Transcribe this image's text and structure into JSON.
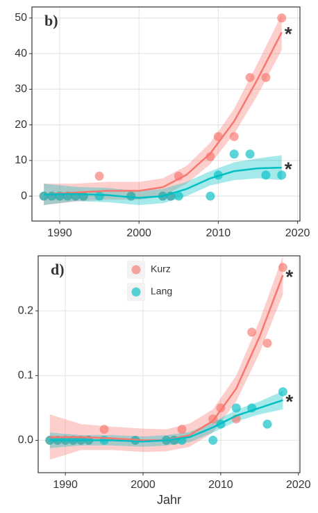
{
  "chart_data": [
    {
      "type": "scatter",
      "panel_label": "b)",
      "xlim": [
        1986.5,
        2020.3
      ],
      "ylim": [
        -7,
        53.1
      ],
      "xticks": [
        1990,
        2000,
        2010,
        2020
      ],
      "yticks": [
        0,
        10,
        20,
        30,
        40,
        50
      ],
      "grid": true,
      "legend": false,
      "series": [
        {
          "name": "Kurz",
          "color": "#F8766D",
          "x": [
            1988,
            1989,
            1990,
            1991,
            1992,
            1993,
            1995,
            1999,
            2003,
            2004,
            2005,
            2009,
            2010,
            2012,
            2014,
            2016,
            2018
          ],
          "values": [
            0,
            0,
            0,
            0,
            0,
            0,
            5.6,
            0,
            0,
            0,
            5.6,
            11.1,
            16.7,
            16.7,
            33.3,
            33.3,
            50
          ]
        },
        {
          "name": "Lang",
          "color": "#00BFC4",
          "x": [
            1988,
            1989,
            1990,
            1991,
            1992,
            1993,
            1995,
            1999,
            2003,
            2004,
            2005,
            2009,
            2010,
            2012,
            2014,
            2016,
            2018
          ],
          "values": [
            0,
            0,
            0,
            0,
            0,
            0,
            0,
            0,
            0,
            0,
            0,
            0,
            5.9,
            11.8,
            11.8,
            5.9,
            5.9
          ]
        }
      ],
      "fits": [
        {
          "color": "#F8766D",
          "x": [
            1988,
            1992,
            1996,
            2000,
            2003,
            2006,
            2009,
            2012,
            2015,
            2018
          ],
          "values": [
            0.5,
            1,
            1.5,
            1.5,
            2.5,
            6,
            12,
            21,
            33,
            46
          ],
          "lower": [
            -2.5,
            -1.5,
            -1,
            -1,
            0,
            3.5,
            9,
            17.5,
            28.5,
            41
          ],
          "upper": [
            3.5,
            3.5,
            4,
            4,
            5,
            8.5,
            15,
            24.5,
            37.5,
            51
          ]
        },
        {
          "color": "#00BFC4",
          "x": [
            1988,
            1992,
            1996,
            2000,
            2003,
            2006,
            2009,
            2012,
            2015,
            2018
          ],
          "values": [
            0.5,
            0.6,
            0.3,
            -0.5,
            0,
            2,
            5,
            7,
            7.8,
            8
          ],
          "lower": [
            -2.5,
            -1.4,
            -1.7,
            -2.5,
            -2,
            0,
            3,
            4.5,
            5,
            4.5
          ],
          "upper": [
            3.5,
            2.6,
            2.3,
            1.5,
            2,
            4,
            7,
            9.5,
            10.6,
            11.5
          ]
        }
      ],
      "annotations": [
        "*",
        "*"
      ]
    },
    {
      "type": "scatter",
      "panel_label": "d)",
      "x_label": "Jahr",
      "xlim": [
        1986.5,
        2020.2
      ],
      "ylim": [
        -0.05,
        0.285
      ],
      "xticks": [
        1990,
        2000,
        2010,
        2020
      ],
      "yticks": [
        {
          "value": 0,
          "label": "0.0"
        },
        0.1,
        0.2
      ],
      "grid": true,
      "legend": true,
      "legend_corner": "top-left",
      "series": [
        {
          "name": "Kurz",
          "color": "#F8766D",
          "x": [
            1988,
            1989,
            1990,
            1991,
            1992,
            1993,
            1995,
            1999,
            2003,
            2004,
            2005,
            2009,
            2010,
            2012,
            2014,
            2016,
            2018
          ],
          "values": [
            0,
            0,
            0,
            0,
            0,
            0,
            0.017,
            0,
            0,
            0,
            0.017,
            0.033,
            0.05,
            0.033,
            0.167,
            0.15,
            0.267
          ]
        },
        {
          "name": "Lang",
          "color": "#00BFC4",
          "x": [
            1988,
            1989,
            1990,
            1991,
            1992,
            1993,
            1995,
            1999,
            2003,
            2004,
            2005,
            2009,
            2010,
            2012,
            2014,
            2016,
            2018
          ],
          "values": [
            0,
            0,
            0,
            0,
            0,
            0,
            0,
            0,
            0,
            0,
            0,
            0,
            0.025,
            0.05,
            0.05,
            0.025,
            0.075
          ]
        }
      ],
      "fits": [
        {
          "color": "#F8766D",
          "x": [
            1988,
            1992,
            1996,
            2000,
            2003,
            2006,
            2009,
            2012,
            2015,
            2018
          ],
          "values": [
            0.005,
            0.005,
            0.003,
            0,
            0,
            0.008,
            0.03,
            0.08,
            0.16,
            0.255
          ],
          "lower": [
            -0.03,
            -0.015,
            -0.015,
            -0.018,
            -0.017,
            -0.01,
            0.012,
            0.06,
            0.135,
            0.225
          ],
          "upper": [
            0.04,
            0.025,
            0.021,
            0.018,
            0.017,
            0.026,
            0.048,
            0.1,
            0.185,
            0.285
          ]
        },
        {
          "color": "#00BFC4",
          "x": [
            1988,
            1992,
            1996,
            2000,
            2003,
            2006,
            2009,
            2012,
            2015,
            2018
          ],
          "values": [
            0,
            0,
            0,
            -0.002,
            0,
            0.005,
            0.02,
            0.038,
            0.05,
            0.062
          ],
          "lower": [
            -0.012,
            -0.008,
            -0.008,
            -0.01,
            -0.008,
            -0.003,
            0.012,
            0.029,
            0.04,
            0.048
          ],
          "upper": [
            0.012,
            0.008,
            0.008,
            0.006,
            0.008,
            0.013,
            0.028,
            0.047,
            0.06,
            0.076
          ]
        }
      ],
      "annotations": [
        "*",
        "*"
      ]
    }
  ]
}
